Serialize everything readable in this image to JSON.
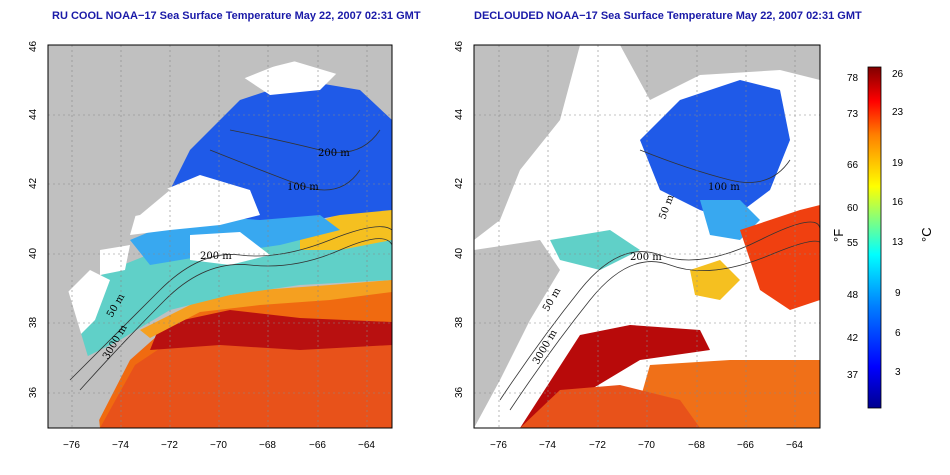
{
  "left_panel": {
    "title": "RU COOL NOAA−17 Sea Surface Temperature May 22, 2007 02:31 GMT",
    "contour_labels": [
      "200 m",
      "100 m",
      "200 m",
      "50 m",
      "3000 m"
    ]
  },
  "right_panel": {
    "title": "DECLOUDED NOAA−17 Sea Surface Temperature May 22, 2007 02:31 GMT",
    "contour_labels": [
      "100 m",
      "50 m",
      "200 m",
      "50 m",
      "3000 m"
    ]
  },
  "axes": {
    "x_ticks": [
      "−76",
      "−74",
      "−72",
      "−70",
      "−68",
      "−66",
      "−64"
    ],
    "y_ticks": [
      "36",
      "38",
      "40",
      "42",
      "44",
      "46"
    ],
    "x_range": [
      -77,
      -63
    ],
    "y_range": [
      35,
      46
    ]
  },
  "colorbar": {
    "fahrenheit_label": "°F",
    "celsius_label": "°C",
    "fahrenheit_ticks": [
      "78",
      "73",
      "66",
      "60",
      "55",
      "48",
      "42",
      "37"
    ],
    "celsius_ticks": [
      "26",
      "23",
      "19",
      "16",
      "13",
      "9",
      "6",
      "3"
    ],
    "colors": [
      "#00008f",
      "#0000ff",
      "#0080ff",
      "#00ffff",
      "#80ff80",
      "#ffff00",
      "#ff8000",
      "#ff0000",
      "#800000"
    ]
  },
  "colors": {
    "land": "#c0c0c0",
    "cloud": "#ffffff",
    "cold": "#1a4fe8",
    "cool": "#3aa0f0",
    "mid": "#6ee0c0",
    "warm": "#f0a010",
    "hot": "#e03010",
    "hottest": "#b00000"
  }
}
